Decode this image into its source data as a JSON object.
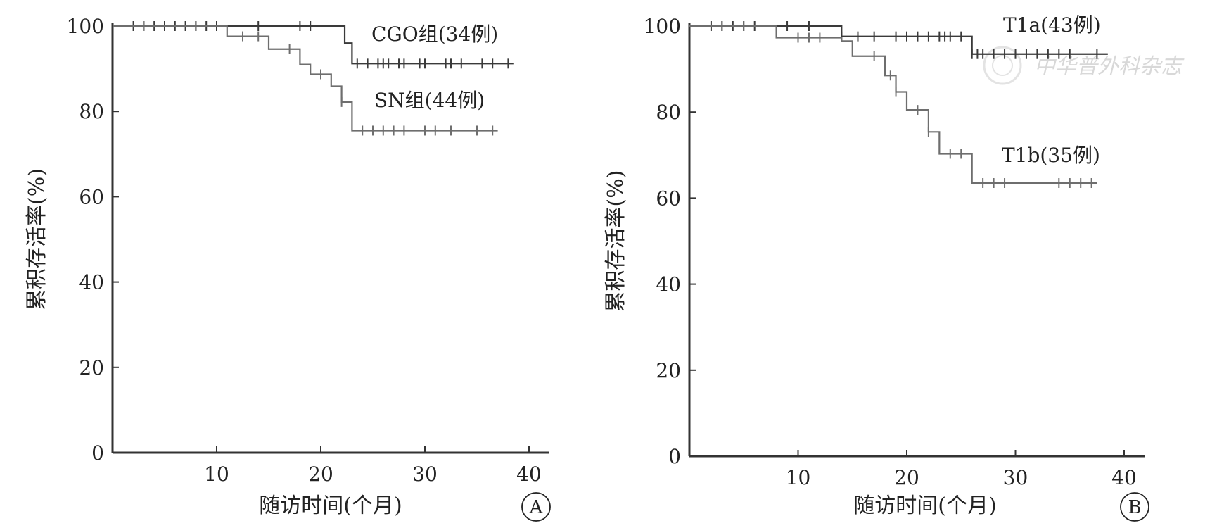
{
  "chart_data": [
    {
      "type": "line",
      "step": true,
      "panel_label": "A",
      "xlabel": "随访时间(个月)",
      "ylabel": "累积存活率(%)",
      "xlim": [
        0,
        42
      ],
      "ylim": [
        0,
        100
      ],
      "x_ticks": [
        10,
        20,
        30,
        40
      ],
      "y_ticks": [
        0,
        20,
        40,
        60,
        80,
        100
      ],
      "grid": false,
      "series": [
        {
          "name": "CGO组(34例)",
          "color": "#3a3a3a",
          "steps": [
            [
              0,
              100
            ],
            [
              22.3,
              96
            ],
            [
              23,
              91.2
            ],
            [
              38.5,
              91.2
            ]
          ],
          "censored_x": [
            2,
            3,
            4,
            5,
            6,
            7,
            8,
            9,
            10,
            14,
            18,
            19,
            23.5,
            24.5,
            25.5,
            26,
            26.5,
            27.5,
            28,
            29.5,
            30,
            32,
            32.5,
            33.5,
            35.5,
            36.5,
            38
          ]
        },
        {
          "name": "SN组(44例)",
          "color": "#6e6e6e",
          "steps": [
            [
              0,
              100
            ],
            [
              11,
              97.6
            ],
            [
              15,
              94.6
            ],
            [
              18,
              91
            ],
            [
              19,
              88.7
            ],
            [
              21,
              85.9
            ],
            [
              22,
              82.2
            ],
            [
              23,
              75.5
            ],
            [
              37,
              75.5
            ]
          ],
          "censored_x": [
            12.5,
            14,
            17,
            20,
            22,
            24,
            25,
            26,
            27,
            28,
            30,
            31,
            32.5,
            35,
            36.5
          ]
        }
      ]
    },
    {
      "type": "line",
      "step": true,
      "panel_label": "B",
      "xlabel": "随访时间(个月)",
      "ylabel": "累积存活率(%)",
      "xlim": [
        0,
        42
      ],
      "ylim": [
        0,
        100
      ],
      "x_ticks": [
        10,
        20,
        30,
        40
      ],
      "y_ticks": [
        0,
        20,
        40,
        60,
        80,
        100
      ],
      "grid": false,
      "series": [
        {
          "name": "T1a(43例)",
          "color": "#3a3a3a",
          "steps": [
            [
              0,
              100
            ],
            [
              14,
              97.6
            ],
            [
              26,
              93.5
            ],
            [
              38.5,
              93.5
            ]
          ],
          "censored_x": [
            2,
            3,
            4,
            5,
            6,
            9,
            11,
            14,
            15.5,
            17,
            19,
            20,
            21,
            22,
            23,
            23.5,
            24,
            25,
            26,
            26.5,
            27,
            28,
            29,
            30,
            31,
            32,
            33,
            34,
            35,
            37.5
          ]
        },
        {
          "name": "T1b(35例)",
          "color": "#6e6e6e",
          "steps": [
            [
              0,
              100
            ],
            [
              8,
              97.3
            ],
            [
              14,
              96.5
            ],
            [
              15,
              93
            ],
            [
              18,
              88.5
            ],
            [
              19,
              84.7
            ],
            [
              20,
              80.5
            ],
            [
              22,
              75.4
            ],
            [
              23,
              70.3
            ],
            [
              26,
              63.5
            ],
            [
              37.5,
              63.5
            ]
          ],
          "censored_x": [
            10,
            11,
            12,
            17,
            18.5,
            19,
            21,
            22,
            24,
            25,
            27,
            28,
            29,
            34,
            35,
            36,
            37
          ]
        }
      ]
    }
  ],
  "watermark": "中华普外科杂志",
  "panel_marks": [
    "A",
    "B"
  ]
}
